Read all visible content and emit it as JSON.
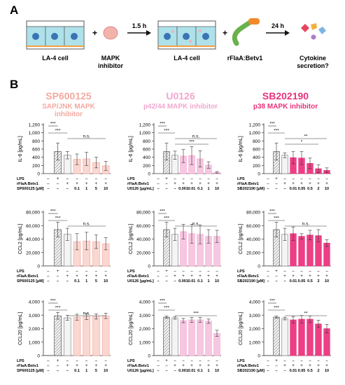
{
  "figure": {
    "panel_a": {
      "letter": "A",
      "cell_label": "LA-4 cell",
      "inhibitor_label": [
        "MAPK",
        "inhibitor"
      ],
      "time1": "1.5 h",
      "cell_label_2": "LA-4 cell",
      "protein_label": "rFlaA:Betv1",
      "time2": "24 h",
      "outcome_label": [
        "Cytokine",
        "secretion?"
      ],
      "plus_sign": "+"
    },
    "panel_b": {
      "letter": "B",
      "columns": [
        {
          "name": "SP600125",
          "subtitle": [
            "SAP/JNK MAPK",
            "inhibitor"
          ],
          "color": "#f4a9a0",
          "fill": "#fbd7d1",
          "row_label": "SP600125 [µM]",
          "concs": [
            "0.1",
            "1",
            "5",
            "10"
          ]
        },
        {
          "name": "U0126",
          "subtitle": [
            "p42/44 MAPK inhibitor"
          ],
          "color": "#f1a7cf",
          "fill": "#f7c7e2",
          "row_label": "U0126 [µg/mL]",
          "concs": [
            "0.001",
            "0.01",
            "0.1",
            "1",
            "10"
          ]
        },
        {
          "name": "SB202190",
          "subtitle": [
            "p38 MAPK inhibitor"
          ],
          "color": "#e8327c",
          "fill": "#ee3f86",
          "row_label": "SB202190 [µM]",
          "concs": [
            "0.01",
            "0.05",
            "0.5",
            "2",
            "10"
          ]
        }
      ],
      "row_labels": [
        "LPS",
        "rFlaA:Betv1"
      ],
      "sig_labels": [
        "***",
        "***",
        "n.s.",
        "**",
        "*"
      ]
    }
  },
  "chart_data": [
    {
      "type": "bar",
      "ylabel": "IL-6 [pg/mL]",
      "ylim": [
        0,
        1200
      ],
      "yticks": [
        0,
        200,
        400,
        600,
        800,
        1000,
        1200
      ],
      "tick_labels": [
        "0",
        "200",
        "400",
        "600",
        "800",
        "1,000",
        "1,200"
      ],
      "values": [
        5,
        540,
        450,
        350,
        360,
        270,
        190
      ],
      "errors": [
        0,
        210,
        90,
        130,
        160,
        130,
        110
      ],
      "annotations": [
        "***",
        "***",
        "n.s."
      ]
    },
    {
      "type": "bar",
      "ylabel": "IL-6 [pg/mL]",
      "ylim": [
        0,
        1200
      ],
      "yticks": [
        0,
        200,
        400,
        600,
        800,
        1000,
        1200
      ],
      "tick_labels": [
        "0",
        "200",
        "400",
        "600",
        "800",
        "1,000",
        "1,200"
      ],
      "values": [
        5,
        540,
        450,
        430,
        440,
        360,
        210,
        30
      ],
      "errors": [
        0,
        210,
        100,
        160,
        220,
        200,
        80,
        20
      ],
      "annotations": [
        "***",
        "***",
        "n.s.",
        "***"
      ]
    },
    {
      "type": "bar",
      "ylabel": "IL-6 [pg/mL]",
      "ylim": [
        0,
        1200
      ],
      "yticks": [
        0,
        200,
        400,
        600,
        800,
        1000,
        1200
      ],
      "tick_labels": [
        "0",
        "200",
        "400",
        "600",
        "800",
        "1,000",
        "1,200"
      ],
      "values": [
        5,
        540,
        450,
        390,
        380,
        250,
        120,
        80
      ],
      "errors": [
        0,
        210,
        60,
        150,
        160,
        130,
        100,
        60
      ],
      "annotations": [
        "***",
        "***",
        "**",
        "*"
      ]
    },
    {
      "type": "bar",
      "ylabel": "CCL2 [pg/mL]",
      "ylim": [
        0,
        80000
      ],
      "yticks": [
        0,
        20000,
        40000,
        60000,
        80000
      ],
      "tick_labels": [
        "0",
        "20,000",
        "40,000",
        "60,000",
        "80,000"
      ],
      "values": [
        500,
        54000,
        47000,
        36000,
        37000,
        36000,
        33000
      ],
      "errors": [
        0,
        11000,
        9000,
        12000,
        13000,
        10000,
        9000
      ],
      "annotations": [
        "***",
        "***",
        "n.s."
      ]
    },
    {
      "type": "bar",
      "ylabel": "CCL2 [pg/mL]",
      "ylim": [
        0,
        80000
      ],
      "yticks": [
        0,
        20000,
        40000,
        60000,
        80000
      ],
      "tick_labels": [
        "0",
        "20,000",
        "40,000",
        "60,000",
        "80,000"
      ],
      "values": [
        500,
        54000,
        47000,
        51000,
        48000,
        47000,
        44000,
        44000
      ],
      "errors": [
        0,
        11000,
        9000,
        11000,
        14000,
        14000,
        10000,
        9000
      ],
      "annotations": [
        "***",
        "***",
        "n.s."
      ]
    },
    {
      "type": "bar",
      "ylabel": "CCL2 [pg/mL]",
      "ylim": [
        0,
        80000
      ],
      "yticks": [
        0,
        20000,
        40000,
        60000,
        80000
      ],
      "tick_labels": [
        "0",
        "20,000",
        "40,000",
        "60,000",
        "80,000"
      ],
      "values": [
        500,
        54000,
        47000,
        48000,
        44000,
        46000,
        45000,
        34000
      ],
      "errors": [
        0,
        11000,
        9000,
        10000,
        4000,
        7000,
        9000,
        5000
      ],
      "annotations": [
        "***",
        "***",
        "n.s."
      ]
    },
    {
      "type": "bar",
      "ylabel": "CCL20 [pg/mL]",
      "ylim": [
        0,
        4000
      ],
      "yticks": [
        0,
        1000,
        2000,
        3000,
        4000
      ],
      "tick_labels": [
        "0",
        "1,000",
        "2,000",
        "3,000",
        "4,000"
      ],
      "values": [
        30,
        2950,
        2800,
        2850,
        2900,
        2900,
        2950
      ],
      "errors": [
        0,
        250,
        180,
        220,
        230,
        190,
        200
      ],
      "annotations": [
        "***",
        "***",
        "n.s."
      ]
    },
    {
      "type": "bar",
      "ylabel": "CCL20 [pg/mL]",
      "ylim": [
        0,
        4000
      ],
      "yticks": [
        0,
        1000,
        2000,
        3000,
        4000
      ],
      "tick_labels": [
        "0",
        "1,000",
        "2,000",
        "3,000",
        "4,000"
      ],
      "values": [
        30,
        2850,
        2800,
        2600,
        2650,
        2650,
        2550,
        1650
      ],
      "errors": [
        0,
        80,
        100,
        160,
        180,
        180,
        160,
        230
      ],
      "annotations": [
        "***",
        "***",
        "***"
      ]
    },
    {
      "type": "bar",
      "ylabel": "CCL20 [pg/mL]",
      "ylim": [
        0,
        4000
      ],
      "yticks": [
        0,
        1000,
        2000,
        3000,
        4000
      ],
      "tick_labels": [
        "0",
        "1,000",
        "2,000",
        "3,000",
        "4,000"
      ],
      "values": [
        30,
        2850,
        2750,
        2650,
        2700,
        2700,
        2350,
        2000
      ],
      "errors": [
        0,
        80,
        100,
        250,
        280,
        250,
        270,
        320
      ],
      "annotations": [
        "***",
        "***",
        "**"
      ]
    }
  ]
}
